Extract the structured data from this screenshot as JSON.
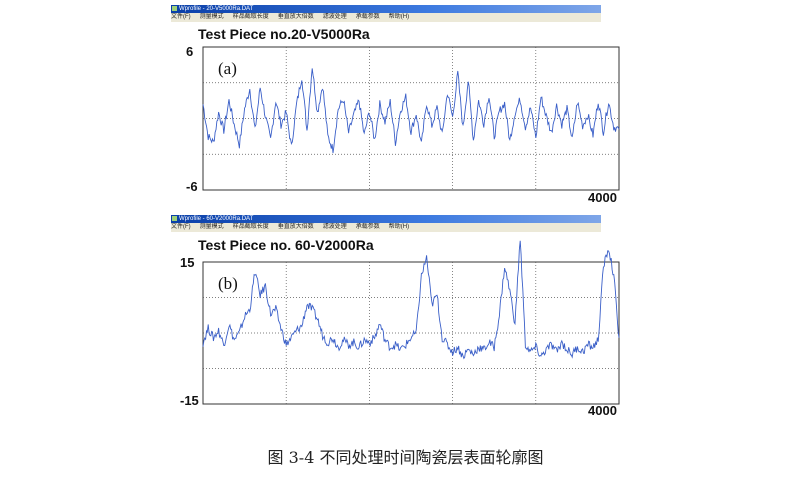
{
  "windows": [
    {
      "title": "Wprofile - 20-V5000Ra.DAT",
      "menu": [
        "文件(F)",
        "测量模式",
        "样品截取长度",
        "垂直放大倍数",
        "滤波处理",
        "承载参数",
        "帮助(H)"
      ]
    },
    {
      "title": "Wprofile - 60-V2000Ra.DAT",
      "menu": [
        "文件(F)",
        "测量模式",
        "样品截取长度",
        "垂直放大倍数",
        "滤波处理",
        "承载参数",
        "帮助(H)"
      ]
    }
  ],
  "caption": "图 3-4 不同处理时间陶瓷层表面轮廓图",
  "colors": {
    "line": "#3a5fc8",
    "grid": "#555555",
    "frame": "#333333"
  },
  "chart_data": [
    {
      "type": "line",
      "title": "Test Piece no.20-V5000Ra",
      "panel_label": "(a)",
      "ymax_label": "6",
      "ymin_label": "-6",
      "xmax_label": "4000",
      "xlim": [
        0,
        4000
      ],
      "ylim": [
        -6,
        6
      ],
      "grid": "dotted",
      "values": [
        1.2,
        -1.5,
        -2,
        0.5,
        -1,
        1.5,
        -0.5,
        -2.2,
        0.8,
        2.5,
        -1,
        2.6,
        0.2,
        -1.8,
        1.5,
        -0.5,
        0.5,
        -2.4,
        1.2,
        3.5,
        -1,
        4.4,
        0.5,
        2.8,
        -1.5,
        -2.6,
        0.8,
        1.6,
        -1.2,
        0.3,
        1.5,
        -1.4,
        0.6,
        -1.8,
        1.2,
        -0.3,
        1.4,
        -2,
        0.7,
        1.8,
        -1.1,
        0.4,
        -2.2,
        1.3,
        -0.6,
        0.9,
        -1.4,
        2.2,
        0.1,
        3.8,
        -0.8,
        3.2,
        -1.8,
        1.5,
        -0.4,
        2,
        -1.5,
        0.6,
        1.3,
        -1.9,
        0.5,
        1.6,
        -0.7,
        0.9,
        -1.6,
        1.8,
        0.2,
        -1.2,
        1.1,
        -0.5,
        0.8,
        -1.8,
        1.4,
        -0.6,
        0.3,
        -1.4,
        1.5,
        -1.1,
        1.4,
        -0.7,
        -0.9
      ]
    },
    {
      "type": "line",
      "title": "Test Piece no. 60-V2000Ra",
      "panel_label": "(b)",
      "ymax_label": "15",
      "ymin_label": "-15",
      "xmax_label": "4000",
      "xlim": [
        0,
        4000
      ],
      "ylim": [
        -15,
        15
      ],
      "grid": "dotted",
      "values": [
        -2,
        1,
        -1,
        0.5,
        -2.5,
        1.8,
        -1.5,
        0,
        3.5,
        5,
        13,
        8,
        10,
        4,
        5,
        1,
        -2.5,
        -1,
        0.5,
        1.5,
        6,
        5,
        3,
        -0.5,
        -2,
        -1,
        -3,
        -1.5,
        -2.5,
        -2,
        -3,
        -1.5,
        -2,
        -1,
        2,
        -1.5,
        -3,
        -2.5,
        -3.5,
        -2.5,
        -1,
        0,
        12,
        16,
        6,
        8,
        -1,
        -2.5,
        -4,
        -3,
        -5,
        -3.5,
        -4.5,
        -3,
        -3.5,
        -2,
        -3,
        4,
        14,
        9,
        2,
        20,
        -2.5,
        -4,
        -3,
        -5,
        -3.5,
        -2.5,
        -4,
        -2,
        -3.5,
        -4.5,
        -3,
        -4,
        -2.5,
        -3,
        -1.5,
        14,
        18,
        12,
        -1
      ]
    }
  ]
}
